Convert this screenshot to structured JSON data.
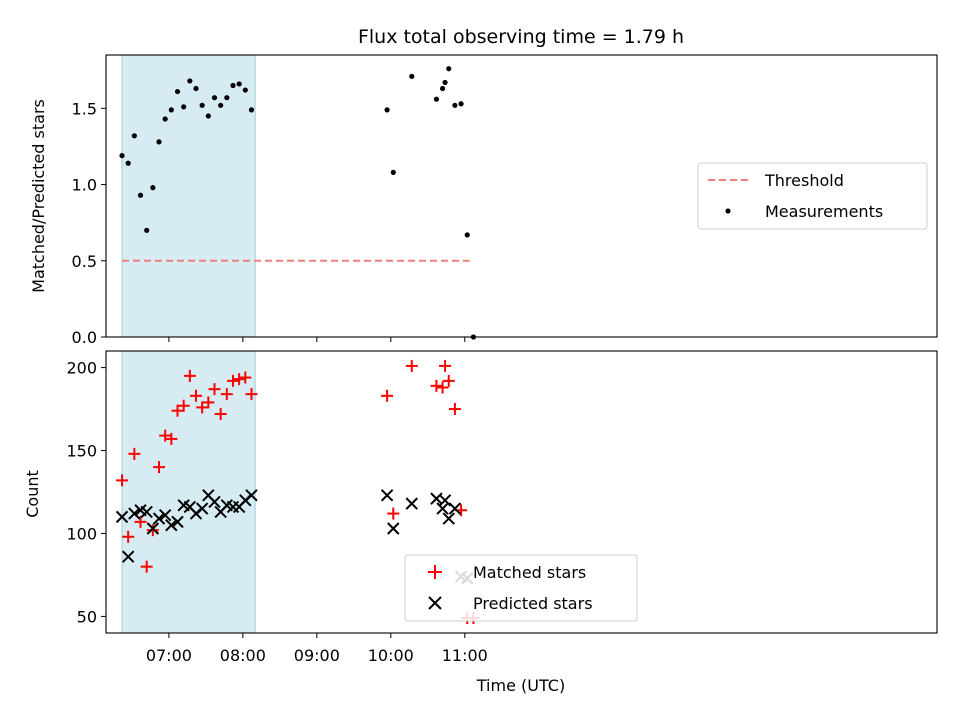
{
  "chart_data": [
    {
      "type": "scatter",
      "title": "Flux total observing time = 1.79 h",
      "xlabel": "",
      "ylabel": "Matched/Predicted stars",
      "ylim": [
        0,
        1.85
      ],
      "yticks": [
        "0.0",
        "0.5",
        "1.0",
        "1.5"
      ],
      "ytick_values": [
        0,
        0.5,
        1.0,
        1.5
      ],
      "xlim_minutes_utc": [
        369,
        1043
      ],
      "highlight_span_utc": [
        "06:22",
        "08:10"
      ],
      "highlight_color": "#add8e6",
      "threshold": {
        "name": "Threshold",
        "y": 0.5,
        "x_start_utc": "06:22",
        "x_end_utc": "11:04",
        "color": "#f08080",
        "style": "dashed"
      },
      "legend": {
        "placement": "center-right",
        "entries": [
          "Threshold",
          "Measurements"
        ]
      },
      "series": [
        {
          "name": "Measurements",
          "color": "#000000",
          "marker": "dot",
          "x_utc": [
            "06:22",
            "06:27",
            "06:32",
            "06:37",
            "06:42",
            "06:47",
            "06:52",
            "06:57",
            "07:02",
            "07:07",
            "07:12",
            "07:17",
            "07:22",
            "07:27",
            "07:32",
            "07:37",
            "07:42",
            "07:47",
            "07:52",
            "07:57",
            "08:02",
            "08:07",
            "09:57",
            "10:02",
            "10:17",
            "10:37",
            "10:42",
            "10:44",
            "10:47",
            "10:52",
            "10:57",
            "11:02",
            "11:07"
          ],
          "y": [
            1.19,
            1.14,
            1.32,
            0.93,
            0.7,
            0.98,
            1.28,
            1.43,
            1.49,
            1.61,
            1.51,
            1.68,
            1.63,
            1.52,
            1.45,
            1.57,
            1.52,
            1.57,
            1.65,
            1.66,
            1.62,
            1.49,
            1.49,
            1.08,
            1.71,
            1.56,
            1.63,
            1.67,
            1.76,
            1.52,
            1.53,
            0.67,
            0.0
          ]
        }
      ]
    },
    {
      "type": "scatter",
      "title": "",
      "xlabel": "Time (UTC)",
      "ylabel": "Count",
      "ylim": [
        40,
        210
      ],
      "yticks": [
        "50",
        "100",
        "150",
        "200"
      ],
      "ytick_values": [
        50,
        100,
        150,
        200
      ],
      "xticks": [
        "07:00",
        "08:00",
        "09:00",
        "10:00",
        "11:00"
      ],
      "xtick_minutes_utc": [
        420,
        480,
        540,
        600,
        660
      ],
      "xlim_minutes_utc": [
        369,
        1043
      ],
      "highlight_span_utc": [
        "06:22",
        "08:10"
      ],
      "highlight_color": "#add8e6",
      "legend": {
        "placement": "bottom-center",
        "entries": [
          "Matched stars",
          "Predicted stars"
        ]
      },
      "series": [
        {
          "name": "Matched stars",
          "color": "#ff0000",
          "marker": "plus",
          "x_utc": [
            "06:22",
            "06:27",
            "06:32",
            "06:37",
            "06:42",
            "06:47",
            "06:52",
            "06:57",
            "07:02",
            "07:07",
            "07:12",
            "07:17",
            "07:22",
            "07:27",
            "07:32",
            "07:37",
            "07:42",
            "07:47",
            "07:52",
            "07:57",
            "08:02",
            "08:07",
            "09:57",
            "10:02",
            "10:17",
            "10:37",
            "10:42",
            "10:44",
            "10:47",
            "10:52",
            "10:57",
            "11:02",
            "11:07"
          ],
          "y": [
            132,
            98,
            148,
            107,
            80,
            102,
            140,
            159,
            157,
            174,
            177,
            195,
            183,
            176,
            179,
            187,
            172,
            184,
            192,
            193,
            194,
            184,
            183,
            112,
            201,
            189,
            188,
            201,
            192,
            175,
            114,
            49,
            49
          ]
        },
        {
          "name": "Predicted stars",
          "color": "#000000",
          "marker": "x",
          "x_utc": [
            "06:22",
            "06:27",
            "06:32",
            "06:37",
            "06:42",
            "06:47",
            "06:52",
            "06:57",
            "07:02",
            "07:07",
            "07:12",
            "07:17",
            "07:22",
            "07:27",
            "07:32",
            "07:37",
            "07:42",
            "07:47",
            "07:52",
            "07:57",
            "08:02",
            "08:07",
            "09:57",
            "10:02",
            "10:17",
            "10:37",
            "10:42",
            "10:44",
            "10:47",
            "10:52",
            "10:57",
            "11:02"
          ],
          "y": [
            110,
            86,
            112,
            114,
            113,
            103,
            109,
            111,
            105,
            107,
            117,
            116,
            112,
            115,
            123,
            119,
            113,
            117,
            116,
            116,
            120,
            123,
            123,
            103,
            118,
            121,
            115,
            120,
            109,
            115,
            74,
            73
          ]
        }
      ]
    }
  ]
}
